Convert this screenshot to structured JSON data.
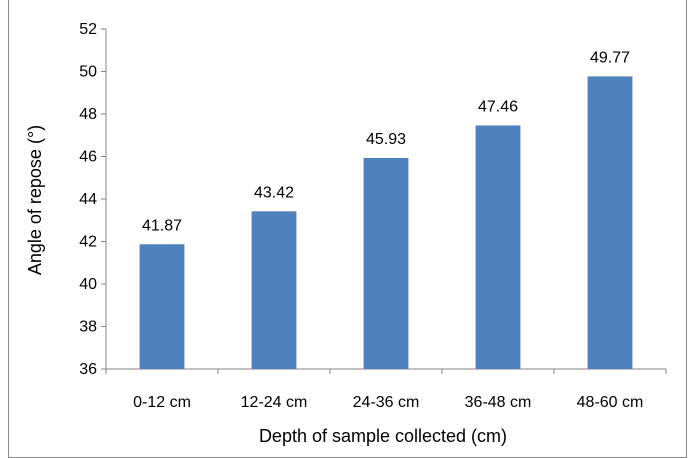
{
  "chart_data": {
    "type": "bar",
    "title": "",
    "xlabel": "Depth of sample collected (cm)",
    "ylabel": "Angle of repose (°)",
    "categories": [
      "0-12 cm",
      "12-24 cm",
      "24-36 cm",
      "36-48 cm",
      "48-60 cm"
    ],
    "values": [
      41.87,
      43.42,
      45.93,
      47.46,
      49.77
    ],
    "value_labels": [
      "41.87",
      "43.42",
      "45.93",
      "47.46",
      "49.77"
    ],
    "ylim": [
      36,
      52
    ],
    "yticks": [
      "36",
      "38",
      "40",
      "42",
      "44",
      "46",
      "48",
      "50",
      "52"
    ],
    "grid": false,
    "legend": "none",
    "bar_color": "#4f81bd"
  }
}
